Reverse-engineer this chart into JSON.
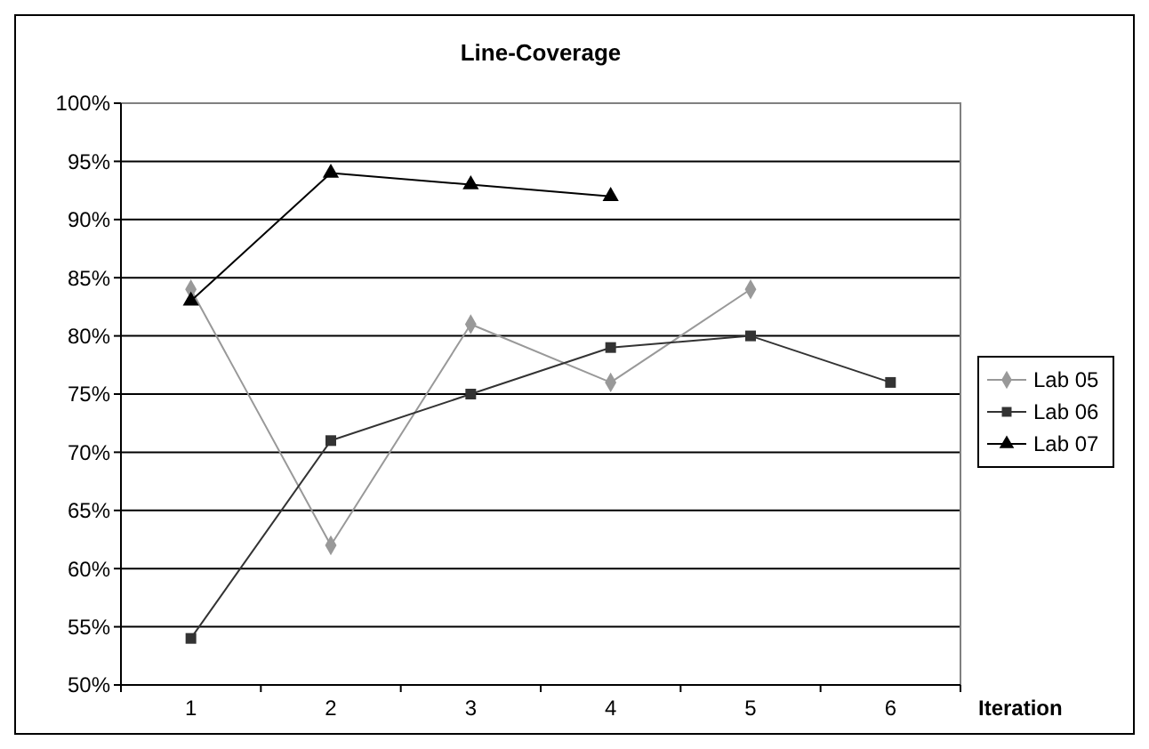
{
  "chart_data": {
    "type": "line",
    "title": "Line-Coverage",
    "xlabel": "Iteration",
    "categories": [
      "1",
      "2",
      "3",
      "4",
      "5",
      "6"
    ],
    "series": [
      {
        "name": "Lab 05",
        "color": "#999999",
        "marker": "diamond",
        "values": [
          84,
          62,
          81,
          76,
          84,
          null
        ]
      },
      {
        "name": "Lab 06",
        "color": "#333333",
        "marker": "square",
        "values": [
          54,
          71,
          75,
          79,
          80,
          76
        ]
      },
      {
        "name": "Lab 07",
        "color": "#000000",
        "marker": "triangle",
        "values": [
          83,
          94,
          93,
          92,
          null,
          null
        ]
      }
    ],
    "ylim": [
      50,
      100
    ],
    "yticks": [
      {
        "value": 50,
        "label": "50%"
      },
      {
        "value": 55,
        "label": "55%"
      },
      {
        "value": 60,
        "label": "60%"
      },
      {
        "value": 65,
        "label": "65%"
      },
      {
        "value": 70,
        "label": "70%"
      },
      {
        "value": 75,
        "label": "75%"
      },
      {
        "value": 80,
        "label": "80%"
      },
      {
        "value": 85,
        "label": "85%"
      },
      {
        "value": 90,
        "label": "90%"
      },
      {
        "value": 95,
        "label": "95%"
      },
      {
        "value": 100,
        "label": "100%"
      }
    ],
    "grid": "y",
    "legend": "right",
    "line_style": "solid"
  }
}
